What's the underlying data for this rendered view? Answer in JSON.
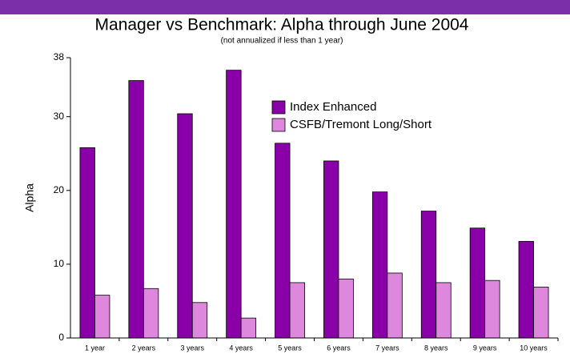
{
  "chart_data": {
    "type": "bar",
    "title": "Manager vs Benchmark: Alpha through June 2004",
    "subtitle": "(not annualized if less than 1 year)",
    "y_label": "Alpha",
    "categories": [
      "1 year",
      "2 years",
      "3 years",
      "4 years",
      "5 years",
      "6 years",
      "7 years",
      "8 years",
      "9 years",
      "10 years"
    ],
    "series": [
      {
        "name": "Index Enhanced",
        "color": "#8a00a8",
        "values": [
          25.8,
          34.9,
          30.4,
          36.3,
          26.4,
          24.0,
          19.8,
          17.2,
          14.9,
          13.1
        ]
      },
      {
        "name": "CSFB/Tremont Long/Short",
        "color": "#dd88dd",
        "values": [
          5.8,
          6.7,
          4.8,
          2.7,
          7.5,
          8.0,
          8.8,
          7.5,
          7.8,
          6.9
        ]
      }
    ],
    "ylim": [
      0,
      38
    ],
    "yticks": [
      0,
      10,
      20,
      30,
      38
    ],
    "legend": "upper-center"
  }
}
